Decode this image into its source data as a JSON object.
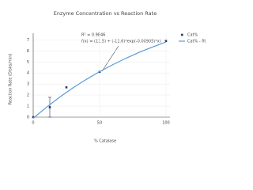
{
  "chart_data": {
    "type": "scatter",
    "title": "Enzyme Concentration vs Reaction Rate",
    "x_label": "% Catalase",
    "y_label": "Reaction Rate (Disks/min)",
    "annotations": [
      "R² = 0.9846",
      "f(x) = (11.5) + (-11.6)*exp(-0.00905)*x)"
    ],
    "series": [
      {
        "name": "Cat%",
        "type": "scatter",
        "color": "#1f3b6b",
        "x": [
          0,
          12.5,
          25,
          50,
          100
        ],
        "values": [
          0,
          0.9,
          2.7,
          4.1,
          6.9
        ],
        "error": [
          null,
          0.9,
          null,
          null,
          null
        ]
      },
      {
        "name": "Cat% - fit",
        "type": "line",
        "color": "#5a9bd5",
        "x": [
          0,
          10,
          20,
          30,
          40,
          50,
          60,
          70,
          80,
          90,
          100
        ],
        "values": [
          -0.1,
          0.9,
          1.82,
          2.66,
          3.42,
          4.12,
          4.76,
          5.34,
          5.88,
          6.36,
          6.81
        ]
      }
    ],
    "xlim": [
      0,
      103
    ],
    "ylim": [
      0,
      7.6
    ],
    "xticks": [
      0,
      50,
      100
    ],
    "yticks": [
      0,
      1,
      2,
      3,
      4,
      5,
      6,
      7
    ],
    "grid": true
  }
}
